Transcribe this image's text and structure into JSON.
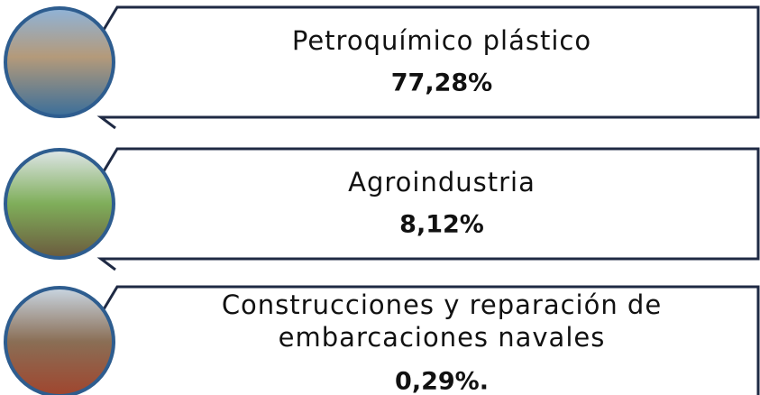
{
  "items": [
    {
      "label": [
        "Petroquímico plástico"
      ],
      "value": "77,28%"
    },
    {
      "label": [
        "Agroindustria"
      ],
      "value": "8,12%"
    },
    {
      "label": [
        "Construcciones y reparación de",
        "embarcaciones navales"
      ],
      "value": "0,29%."
    }
  ]
}
